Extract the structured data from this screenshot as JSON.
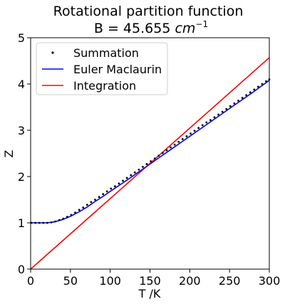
{
  "chart_data": {
    "type": "line",
    "title_line1": "Rotational partition function",
    "title_line2_prefix": "B = 45.655 ",
    "title_line2_unit": "cm",
    "title_line2_exp": "−1",
    "xlabel": "T /K",
    "ylabel": "Z",
    "xlim": [
      0,
      300
    ],
    "ylim": [
      0,
      5
    ],
    "xticks": [
      0,
      50,
      100,
      150,
      200,
      250,
      300
    ],
    "yticks": [
      0,
      1,
      2,
      3,
      4,
      5
    ],
    "grid": false,
    "legend_position": "upper-left",
    "series": [
      {
        "name": "Summation",
        "style": "points",
        "color": "#000000",
        "x": [
          1,
          6,
          11,
          16,
          21,
          26,
          31,
          36,
          41,
          46,
          51,
          56,
          61,
          66,
          71,
          76,
          81,
          86,
          91,
          96,
          101,
          106,
          111,
          116,
          121,
          126,
          131,
          136,
          141,
          146,
          151,
          156,
          161,
          166,
          171,
          176,
          181,
          186,
          191,
          196,
          201,
          206,
          211,
          216,
          221,
          226,
          231,
          236,
          241,
          246,
          251,
          256,
          261,
          266,
          271,
          276,
          281,
          286,
          291,
          296,
          300
        ],
        "y": [
          1.0,
          1.0,
          1.0,
          1.0,
          1.0,
          1.01,
          1.03,
          1.06,
          1.09,
          1.13,
          1.17,
          1.22,
          1.28,
          1.33,
          1.39,
          1.45,
          1.5,
          1.56,
          1.62,
          1.68,
          1.74,
          1.79,
          1.85,
          1.91,
          1.97,
          2.03,
          2.09,
          2.15,
          2.21,
          2.27,
          2.33,
          2.39,
          2.45,
          2.51,
          2.57,
          2.63,
          2.69,
          2.75,
          2.81,
          2.87,
          2.93,
          2.99,
          3.05,
          3.11,
          3.17,
          3.22,
          3.28,
          3.34,
          3.4,
          3.46,
          3.52,
          3.58,
          3.64,
          3.7,
          3.76,
          3.82,
          3.88,
          3.94,
          4.0,
          4.06,
          4.1
        ]
      },
      {
        "name": "Euler Maclaurin",
        "style": "line",
        "color": "#0000ff",
        "x": [
          0,
          10,
          20,
          30,
          40,
          50,
          60,
          70,
          80,
          90,
          100,
          120,
          140,
          160,
          180,
          200,
          220,
          240,
          260,
          280,
          300
        ],
        "y": [
          1.0,
          1.0,
          1.0,
          1.02,
          1.07,
          1.14,
          1.23,
          1.33,
          1.45,
          1.56,
          1.68,
          1.91,
          2.15,
          2.39,
          2.63,
          2.87,
          3.11,
          3.35,
          3.59,
          3.83,
          4.08
        ]
      },
      {
        "name": "Integration",
        "style": "line",
        "color": "#ff0000",
        "x": [
          0,
          300
        ],
        "y": [
          0.0,
          4.57
        ]
      }
    ]
  }
}
